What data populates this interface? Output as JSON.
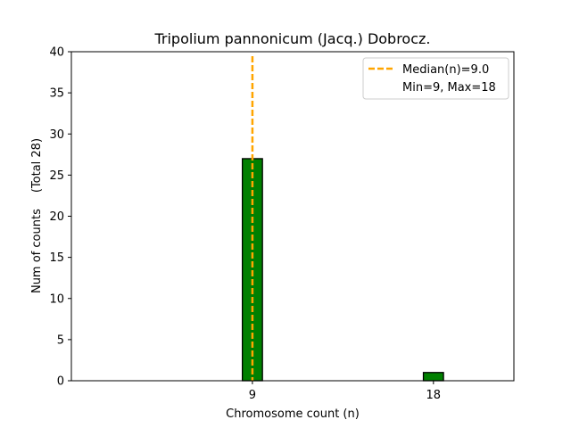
{
  "chart_data": {
    "type": "bar",
    "title": "Tripolium pannonicum (Jacq.) Dobrocz.",
    "xlabel": "Chromosome count (n)",
    "ylabel": "Num of counts",
    "ylabel_note": "(Total 28)",
    "x_ticks": [
      "9",
      "18"
    ],
    "y_ticks": [
      "0",
      "5",
      "10",
      "15",
      "20",
      "25",
      "30",
      "35",
      "40"
    ],
    "xlim": [
      0,
      22
    ],
    "ylim": [
      0,
      40
    ],
    "bar_width": 1,
    "bars": [
      {
        "x": 9,
        "count": 27
      },
      {
        "x": 18,
        "count": 1
      }
    ],
    "median_line": {
      "x": 9,
      "label": "Median(n)=9.0"
    },
    "legend": {
      "placement": "top-right",
      "entries": [
        "Median(n)=9.0",
        "Min=9, Max=18"
      ]
    },
    "grid": false,
    "colors": {
      "bar_fill": "#008000",
      "bar_edge": "#000000",
      "median": "#FFA500"
    }
  }
}
